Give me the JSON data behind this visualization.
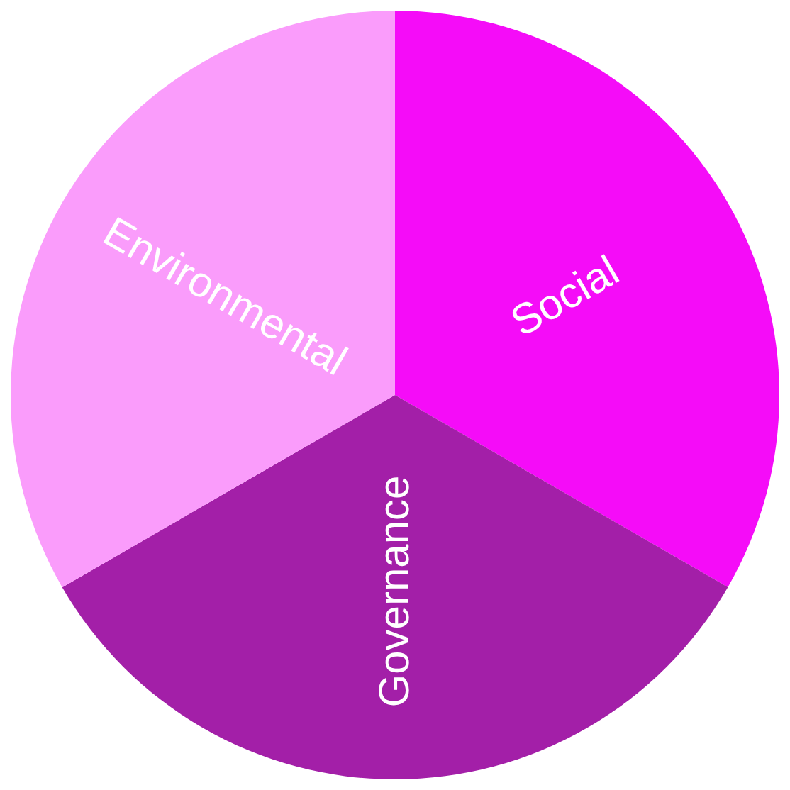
{
  "chart_data": {
    "type": "pie",
    "categories": [
      "Social",
      "Governance",
      "Environmental"
    ],
    "values": [
      33.33,
      33.33,
      33.34
    ],
    "colors": [
      "#f50cf8",
      "#a31fa8",
      "#fa9cfb"
    ]
  }
}
